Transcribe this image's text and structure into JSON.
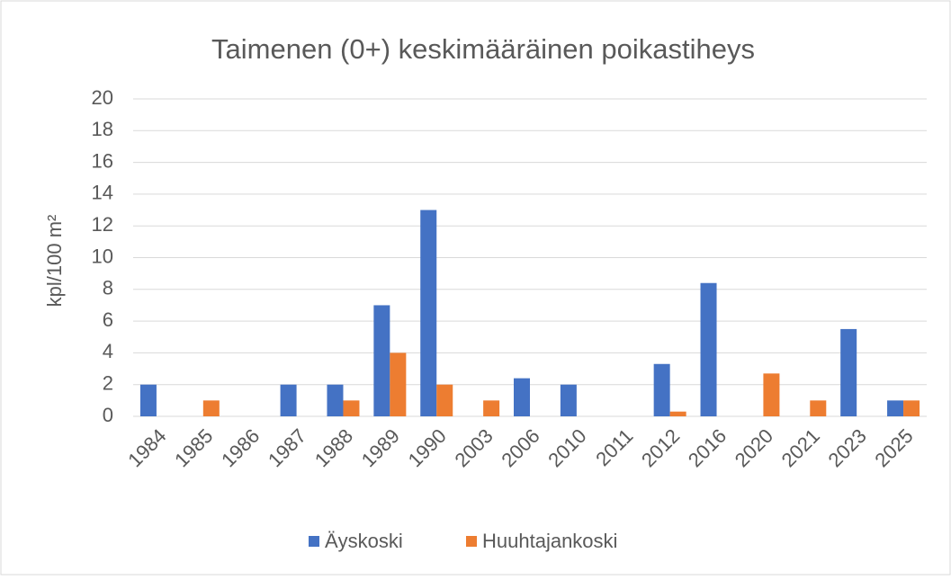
{
  "chart_data": {
    "type": "bar",
    "title": "Taimenen (0+) keskimääräinen poikastiheys",
    "y_label": "kpl/100 m²",
    "categories": [
      "1984",
      "1985",
      "1986",
      "1987",
      "1988",
      "1989",
      "1990",
      "2003",
      "2006",
      "2010",
      "2011",
      "2012",
      "2016",
      "2020",
      "2021",
      "2023",
      "2025"
    ],
    "series": [
      {
        "name": "Äyskoski",
        "color": "#4472c4",
        "values": [
          2,
          0,
          0,
          2,
          2,
          7,
          13,
          0,
          2.4,
          2,
          0,
          3.3,
          8.4,
          0,
          0,
          5.5,
          1
        ]
      },
      {
        "name": "Huuhtajankoski",
        "color": "#ed7d31",
        "values": [
          0,
          1,
          0,
          0,
          1,
          4,
          2,
          1,
          0,
          0,
          0,
          0.3,
          0,
          2.7,
          1,
          0,
          1
        ]
      }
    ],
    "ylim": [
      0,
      20
    ],
    "yticks": [
      0,
      2,
      4,
      6,
      8,
      10,
      12,
      14,
      16,
      18,
      20
    ],
    "grid": true,
    "legend": "bottom"
  }
}
